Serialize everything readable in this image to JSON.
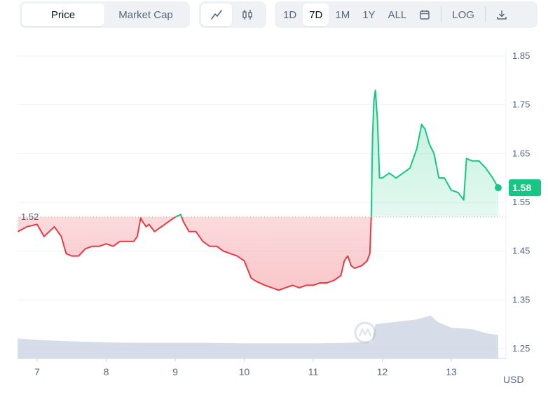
{
  "toolbar": {
    "metric_tabs": [
      {
        "label": "Price",
        "active": true
      },
      {
        "label": "Market Cap",
        "active": false
      }
    ],
    "chart_types": [
      {
        "icon": "line-chart-icon",
        "active": true
      },
      {
        "icon": "candlestick-icon",
        "active": false
      }
    ],
    "ranges": [
      {
        "label": "1D",
        "active": false
      },
      {
        "label": "7D",
        "active": true
      },
      {
        "label": "1M",
        "active": false
      },
      {
        "label": "1Y",
        "active": false
      },
      {
        "label": "ALL",
        "active": false
      }
    ],
    "calendar_icon": "calendar-icon",
    "log_label": "LOG",
    "download_icon": "download-icon"
  },
  "currency_label": "USD",
  "colors": {
    "up": "#16c784",
    "down": "#ea3943",
    "volume": "#cfd6e4",
    "grid": "#eff2f5",
    "axis_text": "#58667e"
  },
  "chart_data": {
    "type": "line",
    "x_ticks": [
      "7",
      "8",
      "9",
      "10",
      "11",
      "12",
      "13"
    ],
    "y_ticks": [
      "1.85",
      "1.75",
      "1.65",
      "1.55",
      "1.45",
      "1.35",
      "1.25"
    ],
    "ylim": [
      1.25,
      1.85
    ],
    "baseline_label": "1.52",
    "baseline": 1.52,
    "last_price_label": "1.58",
    "last_price": 1.58,
    "x": [
      6.72,
      6.85,
      7.0,
      7.1,
      7.25,
      7.35,
      7.42,
      7.5,
      7.6,
      7.7,
      7.8,
      7.9,
      8.0,
      8.1,
      8.2,
      8.3,
      8.4,
      8.45,
      8.5,
      8.53,
      8.58,
      8.62,
      8.7,
      8.8,
      8.9,
      9.0,
      9.08,
      9.12,
      9.2,
      9.3,
      9.4,
      9.5,
      9.6,
      9.7,
      9.8,
      9.9,
      10.0,
      10.1,
      10.15,
      10.22,
      10.3,
      10.4,
      10.5,
      10.6,
      10.7,
      10.8,
      10.9,
      11.0,
      11.1,
      11.2,
      11.3,
      11.4,
      11.45,
      11.5,
      11.55,
      11.6,
      11.7,
      11.78,
      11.82,
      11.84,
      11.86,
      11.88,
      11.9,
      11.93,
      11.96,
      12.0,
      12.1,
      12.2,
      12.3,
      12.4,
      12.5,
      12.57,
      12.62,
      12.68,
      12.75,
      12.82,
      12.9,
      13.0,
      13.1,
      13.18,
      13.22,
      13.3,
      13.4,
      13.5,
      13.6,
      13.68
    ],
    "y": [
      1.49,
      1.5,
      1.505,
      1.48,
      1.5,
      1.48,
      1.445,
      1.44,
      1.44,
      1.455,
      1.46,
      1.46,
      1.465,
      1.46,
      1.47,
      1.47,
      1.47,
      1.48,
      1.518,
      1.51,
      1.5,
      1.505,
      1.49,
      1.5,
      1.51,
      1.52,
      1.525,
      1.51,
      1.49,
      1.49,
      1.47,
      1.46,
      1.46,
      1.45,
      1.445,
      1.44,
      1.43,
      1.395,
      1.39,
      1.385,
      1.38,
      1.375,
      1.37,
      1.375,
      1.38,
      1.375,
      1.38,
      1.38,
      1.385,
      1.385,
      1.39,
      1.4,
      1.43,
      1.44,
      1.42,
      1.415,
      1.42,
      1.43,
      1.445,
      1.52,
      1.69,
      1.76,
      1.78,
      1.72,
      1.6,
      1.6,
      1.61,
      1.6,
      1.61,
      1.62,
      1.66,
      1.71,
      1.7,
      1.67,
      1.65,
      1.6,
      1.6,
      1.575,
      1.57,
      1.555,
      1.64,
      1.635,
      1.635,
      1.62,
      1.6,
      1.58
    ],
    "volume_x": [
      6.72,
      7.0,
      7.5,
      8.0,
      8.5,
      9.0,
      9.5,
      10.0,
      10.5,
      11.0,
      11.5,
      11.85,
      11.9,
      12.2,
      12.5,
      12.7,
      12.8,
      13.0,
      13.3,
      13.5,
      13.68
    ],
    "volume_y": [
      1.271,
      1.268,
      1.265,
      1.263,
      1.262,
      1.262,
      1.262,
      1.261,
      1.261,
      1.261,
      1.262,
      1.264,
      1.3,
      1.305,
      1.31,
      1.318,
      1.305,
      1.293,
      1.29,
      1.282,
      1.278
    ]
  }
}
